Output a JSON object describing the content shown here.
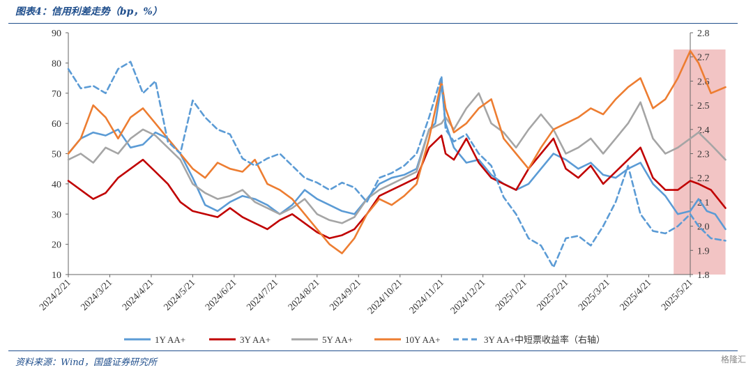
{
  "header": {
    "title": "图表4：信用利差走势（bp，%）"
  },
  "footer": {
    "source": "资料来源：Wind，国盛证券研究所",
    "watermark": "格隆汇"
  },
  "chart_data": {
    "type": "line",
    "x_ticks": [
      "2024/2/21",
      "2024/3/21",
      "2024/4/21",
      "2024/5/21",
      "2024/6/21",
      "2024/7/21",
      "2024/8/21",
      "2024/9/21",
      "2024/10/21",
      "2024/11/21",
      "2024/12/21",
      "2025/1/21",
      "2025/2/21",
      "2025/3/21",
      "2025/4/21",
      "2025/5/21"
    ],
    "y_left": {
      "min": 10,
      "max": 90,
      "ticks": [
        10,
        20,
        30,
        40,
        50,
        60,
        70,
        80,
        90
      ]
    },
    "y_right": {
      "min": 1.8,
      "max": 2.8,
      "ticks": [
        "1.8",
        "1.9",
        "2.0",
        "2.1",
        "2.2",
        "2.3",
        "2.4",
        "2.5",
        "2.6",
        "2.7",
        "2.8"
      ]
    },
    "highlight": {
      "from": 14.6,
      "to": 15.85,
      "color": "#f2c4c4"
    },
    "legend_position": "bottom",
    "series": [
      {
        "name": "1Y AA+",
        "axis": "left",
        "color": "#5b9bd5",
        "dash": false,
        "points": [
          [
            0,
            50
          ],
          [
            0.3,
            55
          ],
          [
            0.6,
            57
          ],
          [
            0.9,
            56
          ],
          [
            1.2,
            58
          ],
          [
            1.5,
            52
          ],
          [
            1.8,
            53
          ],
          [
            2.1,
            57
          ],
          [
            2.4,
            55
          ],
          [
            2.7,
            50
          ],
          [
            3.0,
            42
          ],
          [
            3.3,
            33
          ],
          [
            3.6,
            31
          ],
          [
            3.9,
            34
          ],
          [
            4.2,
            36
          ],
          [
            4.5,
            35
          ],
          [
            4.8,
            33
          ],
          [
            5.1,
            30
          ],
          [
            5.4,
            33
          ],
          [
            5.7,
            38
          ],
          [
            6.0,
            35
          ],
          [
            6.3,
            33
          ],
          [
            6.6,
            31
          ],
          [
            6.9,
            30
          ],
          [
            7.2,
            35
          ],
          [
            7.5,
            40
          ],
          [
            7.8,
            42
          ],
          [
            8.1,
            43
          ],
          [
            8.4,
            45
          ],
          [
            8.7,
            58
          ],
          [
            8.85,
            60
          ],
          [
            9.0,
            73
          ],
          [
            9.1,
            60
          ],
          [
            9.3,
            52
          ],
          [
            9.6,
            47
          ],
          [
            9.9,
            48
          ],
          [
            10.2,
            43
          ],
          [
            10.5,
            40
          ],
          [
            10.8,
            38
          ],
          [
            11.1,
            40
          ],
          [
            11.4,
            45
          ],
          [
            11.7,
            50
          ],
          [
            12.0,
            48
          ],
          [
            12.3,
            45
          ],
          [
            12.6,
            47
          ],
          [
            12.9,
            43
          ],
          [
            13.2,
            42
          ],
          [
            13.5,
            45
          ],
          [
            13.8,
            47
          ],
          [
            14.1,
            40
          ],
          [
            14.4,
            36
          ],
          [
            14.7,
            30
          ],
          [
            15.0,
            31
          ],
          [
            15.2,
            35
          ],
          [
            15.4,
            31
          ],
          [
            15.6,
            30
          ],
          [
            15.85,
            25
          ]
        ]
      },
      {
        "name": "3Y AA+",
        "axis": "left",
        "color": "#c00000",
        "dash": false,
        "points": [
          [
            0,
            41
          ],
          [
            0.3,
            38
          ],
          [
            0.6,
            35
          ],
          [
            0.9,
            37
          ],
          [
            1.2,
            42
          ],
          [
            1.5,
            45
          ],
          [
            1.8,
            48
          ],
          [
            2.1,
            44
          ],
          [
            2.4,
            40
          ],
          [
            2.7,
            34
          ],
          [
            3.0,
            31
          ],
          [
            3.3,
            30
          ],
          [
            3.6,
            29
          ],
          [
            3.9,
            32
          ],
          [
            4.2,
            29
          ],
          [
            4.5,
            27
          ],
          [
            4.8,
            25
          ],
          [
            5.1,
            28
          ],
          [
            5.4,
            30
          ],
          [
            5.7,
            27
          ],
          [
            6.0,
            24
          ],
          [
            6.3,
            22
          ],
          [
            6.6,
            23
          ],
          [
            6.9,
            25
          ],
          [
            7.2,
            30
          ],
          [
            7.5,
            36
          ],
          [
            7.8,
            38
          ],
          [
            8.1,
            40
          ],
          [
            8.4,
            42
          ],
          [
            8.7,
            52
          ],
          [
            9.0,
            56
          ],
          [
            9.1,
            50
          ],
          [
            9.3,
            48
          ],
          [
            9.6,
            55
          ],
          [
            9.9,
            47
          ],
          [
            10.2,
            42
          ],
          [
            10.5,
            40
          ],
          [
            10.8,
            38
          ],
          [
            11.1,
            45
          ],
          [
            11.4,
            50
          ],
          [
            11.7,
            55
          ],
          [
            12.0,
            45
          ],
          [
            12.3,
            42
          ],
          [
            12.6,
            46
          ],
          [
            12.9,
            40
          ],
          [
            13.2,
            44
          ],
          [
            13.5,
            48
          ],
          [
            13.8,
            52
          ],
          [
            14.1,
            42
          ],
          [
            14.4,
            38
          ],
          [
            14.7,
            38
          ],
          [
            15.0,
            41
          ],
          [
            15.2,
            40
          ],
          [
            15.5,
            38
          ],
          [
            15.85,
            32
          ]
        ]
      },
      {
        "name": "5Y AA+",
        "axis": "left",
        "color": "#a5a5a5",
        "dash": false,
        "points": [
          [
            0,
            48
          ],
          [
            0.3,
            50
          ],
          [
            0.6,
            47
          ],
          [
            0.9,
            52
          ],
          [
            1.2,
            50
          ],
          [
            1.5,
            55
          ],
          [
            1.8,
            58
          ],
          [
            2.1,
            56
          ],
          [
            2.4,
            52
          ],
          [
            2.7,
            48
          ],
          [
            3.0,
            40
          ],
          [
            3.3,
            37
          ],
          [
            3.6,
            35
          ],
          [
            3.9,
            36
          ],
          [
            4.2,
            38
          ],
          [
            4.5,
            34
          ],
          [
            4.8,
            32
          ],
          [
            5.1,
            30
          ],
          [
            5.4,
            32
          ],
          [
            5.7,
            35
          ],
          [
            6.0,
            30
          ],
          [
            6.3,
            28
          ],
          [
            6.6,
            27
          ],
          [
            6.9,
            29
          ],
          [
            7.2,
            35
          ],
          [
            7.5,
            38
          ],
          [
            7.8,
            40
          ],
          [
            8.1,
            42
          ],
          [
            8.4,
            44
          ],
          [
            8.7,
            58
          ],
          [
            9.0,
            60
          ],
          [
            9.1,
            62
          ],
          [
            9.3,
            58
          ],
          [
            9.6,
            65
          ],
          [
            9.9,
            70
          ],
          [
            10.2,
            60
          ],
          [
            10.5,
            57
          ],
          [
            10.8,
            52
          ],
          [
            11.1,
            58
          ],
          [
            11.4,
            63
          ],
          [
            11.7,
            58
          ],
          [
            12.0,
            50
          ],
          [
            12.3,
            52
          ],
          [
            12.6,
            55
          ],
          [
            12.9,
            50
          ],
          [
            13.2,
            55
          ],
          [
            13.5,
            60
          ],
          [
            13.8,
            67
          ],
          [
            14.1,
            55
          ],
          [
            14.4,
            50
          ],
          [
            14.7,
            52
          ],
          [
            15.0,
            55
          ],
          [
            15.2,
            57
          ],
          [
            15.5,
            53
          ],
          [
            15.85,
            48
          ]
        ]
      },
      {
        "name": "10Y AA+",
        "axis": "left",
        "color": "#ed7d31",
        "dash": false,
        "points": [
          [
            0,
            50
          ],
          [
            0.3,
            55
          ],
          [
            0.6,
            66
          ],
          [
            0.9,
            62
          ],
          [
            1.2,
            55
          ],
          [
            1.5,
            62
          ],
          [
            1.8,
            65
          ],
          [
            2.1,
            60
          ],
          [
            2.4,
            55
          ],
          [
            2.7,
            50
          ],
          [
            3.0,
            45
          ],
          [
            3.3,
            42
          ],
          [
            3.6,
            47
          ],
          [
            3.9,
            45
          ],
          [
            4.2,
            44
          ],
          [
            4.5,
            48
          ],
          [
            4.8,
            40
          ],
          [
            5.1,
            38
          ],
          [
            5.4,
            35
          ],
          [
            5.7,
            30
          ],
          [
            6.0,
            25
          ],
          [
            6.3,
            20
          ],
          [
            6.6,
            17
          ],
          [
            6.9,
            22
          ],
          [
            7.2,
            30
          ],
          [
            7.5,
            35
          ],
          [
            7.8,
            33
          ],
          [
            8.1,
            36
          ],
          [
            8.4,
            40
          ],
          [
            8.7,
            55
          ],
          [
            9.0,
            74
          ],
          [
            9.1,
            65
          ],
          [
            9.3,
            57
          ],
          [
            9.6,
            60
          ],
          [
            9.9,
            65
          ],
          [
            10.2,
            68
          ],
          [
            10.5,
            55
          ],
          [
            10.8,
            50
          ],
          [
            11.1,
            45
          ],
          [
            11.4,
            52
          ],
          [
            11.7,
            58
          ],
          [
            12.0,
            60
          ],
          [
            12.3,
            62
          ],
          [
            12.6,
            65
          ],
          [
            12.9,
            63
          ],
          [
            13.2,
            68
          ],
          [
            13.5,
            72
          ],
          [
            13.8,
            75
          ],
          [
            14.1,
            65
          ],
          [
            14.4,
            68
          ],
          [
            14.7,
            75
          ],
          [
            15.0,
            84
          ],
          [
            15.2,
            80
          ],
          [
            15.5,
            70
          ],
          [
            15.85,
            72
          ]
        ]
      },
      {
        "name": "3Y AA+中短票收益率（右轴）",
        "axis": "right",
        "color": "#5b9bd5",
        "dash": true,
        "points": [
          [
            0,
            2.65
          ],
          [
            0.3,
            2.57
          ],
          [
            0.6,
            2.58
          ],
          [
            0.9,
            2.55
          ],
          [
            1.2,
            2.65
          ],
          [
            1.5,
            2.68
          ],
          [
            1.8,
            2.55
          ],
          [
            2.1,
            2.6
          ],
          [
            2.4,
            2.35
          ],
          [
            2.7,
            2.3
          ],
          [
            3.0,
            2.52
          ],
          [
            3.3,
            2.45
          ],
          [
            3.6,
            2.4
          ],
          [
            3.9,
            2.38
          ],
          [
            4.2,
            2.28
          ],
          [
            4.5,
            2.25
          ],
          [
            4.8,
            2.28
          ],
          [
            5.1,
            2.3
          ],
          [
            5.4,
            2.25
          ],
          [
            5.7,
            2.2
          ],
          [
            6.0,
            2.18
          ],
          [
            6.3,
            2.15
          ],
          [
            6.6,
            2.18
          ],
          [
            6.9,
            2.16
          ],
          [
            7.2,
            2.1
          ],
          [
            7.5,
            2.2
          ],
          [
            7.8,
            2.22
          ],
          [
            8.1,
            2.25
          ],
          [
            8.4,
            2.3
          ],
          [
            8.7,
            2.45
          ],
          [
            9.0,
            2.62
          ],
          [
            9.1,
            2.4
          ],
          [
            9.3,
            2.35
          ],
          [
            9.6,
            2.38
          ],
          [
            9.9,
            2.3
          ],
          [
            10.2,
            2.25
          ],
          [
            10.5,
            2.12
          ],
          [
            10.8,
            2.05
          ],
          [
            11.1,
            1.95
          ],
          [
            11.4,
            1.92
          ],
          [
            11.7,
            1.83
          ],
          [
            12.0,
            1.95
          ],
          [
            12.3,
            1.96
          ],
          [
            12.6,
            1.92
          ],
          [
            12.9,
            2.0
          ],
          [
            13.2,
            2.1
          ],
          [
            13.5,
            2.25
          ],
          [
            13.8,
            2.05
          ],
          [
            14.1,
            1.98
          ],
          [
            14.4,
            1.97
          ],
          [
            14.7,
            2.0
          ],
          [
            15.0,
            2.05
          ],
          [
            15.2,
            2.0
          ],
          [
            15.5,
            1.95
          ],
          [
            15.85,
            1.94
          ]
        ]
      }
    ]
  }
}
